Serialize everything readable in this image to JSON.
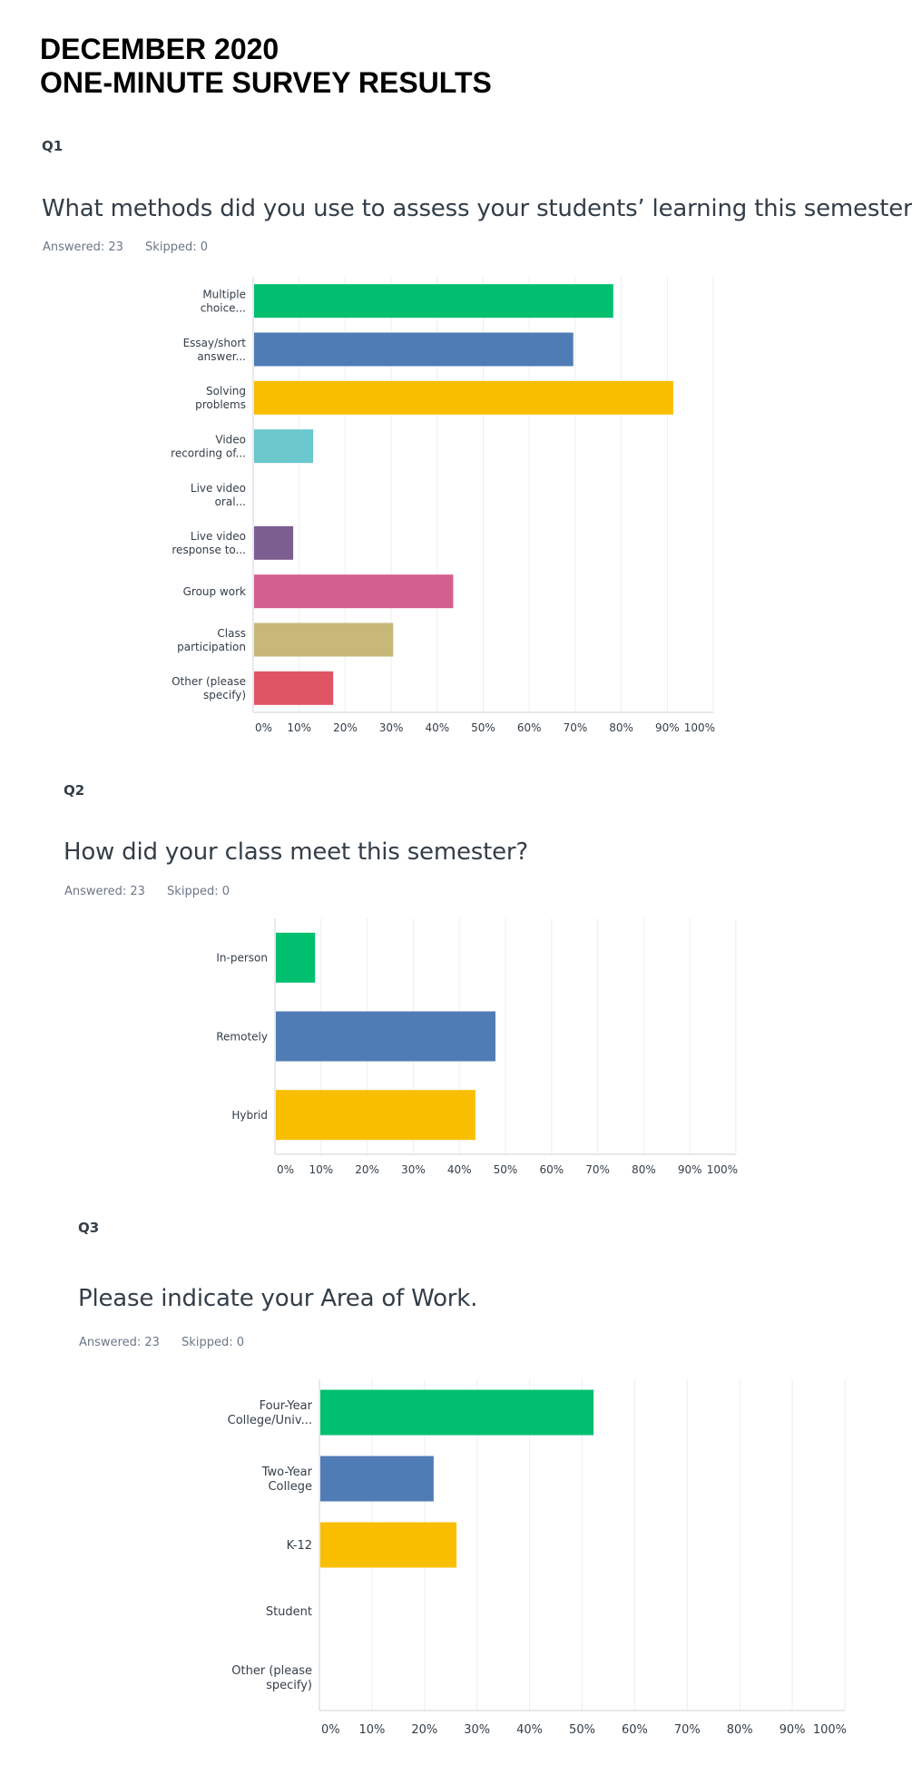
{
  "page": {
    "title_line1": "DECEMBER 2020",
    "title_line2": "ONE-MINUTE SURVEY RESULTS"
  },
  "questions": [
    {
      "label": "Q1",
      "text": "What methods did you use to assess your students’ learning this semester?",
      "answered": "Answered: 23",
      "skipped": "Skipped: 0"
    },
    {
      "label": "Q2",
      "text": "How did your class meet this semester?",
      "answered": "Answered: 23",
      "skipped": "Skipped: 0"
    },
    {
      "label": "Q3",
      "text": "Please indicate your Area of Work.",
      "answered": "Answered: 23",
      "skipped": "Skipped: 0"
    }
  ],
  "chart_data": [
    {
      "type": "bar",
      "orientation": "horizontal",
      "categories": [
        [
          "Multiple",
          "choice..."
        ],
        [
          "Essay/short",
          "answer..."
        ],
        [
          "Solving",
          "problems"
        ],
        [
          "Video",
          "recording of..."
        ],
        [
          "Live video",
          "oral..."
        ],
        [
          "Live video",
          "response to..."
        ],
        [
          "Group work"
        ],
        [
          "Class",
          "participation"
        ],
        [
          "Other (please",
          "specify)"
        ]
      ],
      "values": [
        78.26,
        69.57,
        91.3,
        13.04,
        0,
        8.7,
        43.48,
        30.43,
        17.39
      ],
      "colors": [
        "#00bf6f",
        "#507cb6",
        "#f9be00",
        "#6bc8cd",
        "#ff8b4f",
        "#7d5e90",
        "#d25f90",
        "#c7b879",
        "#e05566"
      ],
      "xlim": [
        0,
        100
      ],
      "ticks": [
        "0%",
        "10%",
        "20%",
        "30%",
        "40%",
        "50%",
        "60%",
        "70%",
        "80%",
        "90%",
        "100%"
      ],
      "grid": true
    },
    {
      "type": "bar",
      "orientation": "horizontal",
      "categories": [
        [
          "In-person"
        ],
        [
          "Remotely"
        ],
        [
          "Hybrid"
        ]
      ],
      "values": [
        8.7,
        47.83,
        43.48
      ],
      "colors": [
        "#00bf6f",
        "#507cb6",
        "#f9be00"
      ],
      "xlim": [
        0,
        100
      ],
      "ticks": [
        "0%",
        "10%",
        "20%",
        "30%",
        "40%",
        "50%",
        "60%",
        "70%",
        "80%",
        "90%",
        "100%"
      ],
      "grid": true
    },
    {
      "type": "bar",
      "orientation": "horizontal",
      "categories": [
        [
          "Four-Year",
          "College/Univ..."
        ],
        [
          "Two-Year",
          "College"
        ],
        [
          "K-12"
        ],
        [
          "Student"
        ],
        [
          "Other (please",
          "specify)"
        ]
      ],
      "values": [
        52.17,
        21.74,
        26.09,
        0,
        0
      ],
      "colors": [
        "#00bf6f",
        "#507cb6",
        "#f9be00",
        "#6bc8cd",
        "#ff8b4f"
      ],
      "xlim": [
        0,
        100
      ],
      "ticks": [
        "0%",
        "10%",
        "20%",
        "30%",
        "40%",
        "50%",
        "60%",
        "70%",
        "80%",
        "90%",
        "100%"
      ],
      "grid": true
    }
  ]
}
